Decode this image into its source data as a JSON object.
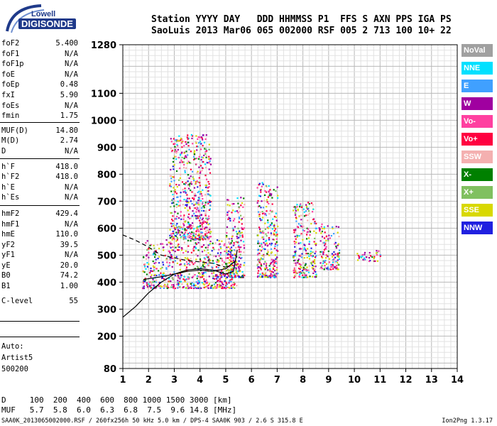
{
  "logo": {
    "line1": "Lowell",
    "line2": "DIGISONDE"
  },
  "header": {
    "line1": "Station YYYY DAY   DDD HHMMSS P1  FFS S AXN PPS IGA PS",
    "line2": "SaoLuis 2013 Mar06 065 002000 RSF 005 2 713 100 10+ 22"
  },
  "params": {
    "group1": [
      {
        "k": "foF2",
        "v": "5.400"
      },
      {
        "k": "foF1",
        "v": "N/A"
      },
      {
        "k": "foF1p",
        "v": "N/A"
      },
      {
        "k": "foE",
        "v": "N/A"
      },
      {
        "k": "foEp",
        "v": "0.48"
      },
      {
        "k": "fxI",
        "v": "5.90"
      },
      {
        "k": "foEs",
        "v": "N/A"
      },
      {
        "k": "fmin",
        "v": "1.75"
      }
    ],
    "group2": [
      {
        "k": "MUF(D)",
        "v": "14.80"
      },
      {
        "k": "M(D)",
        "v": "2.74"
      },
      {
        "k": "D",
        "v": "N/A"
      }
    ],
    "group3": [
      {
        "k": "h`F",
        "v": "418.0"
      },
      {
        "k": "h`F2",
        "v": "418.0"
      },
      {
        "k": "h`E",
        "v": "N/A"
      },
      {
        "k": "h`Es",
        "v": "N/A"
      }
    ],
    "group4": [
      {
        "k": "hmF2",
        "v": "429.4"
      },
      {
        "k": "hmF1",
        "v": "N/A"
      },
      {
        "k": "hmE",
        "v": "110.0"
      },
      {
        "k": "yF2",
        "v": "39.5"
      },
      {
        "k": "yF1",
        "v": "N/A"
      },
      {
        "k": "yE",
        "v": "20.0"
      },
      {
        "k": "B0",
        "v": "74.2"
      },
      {
        "k": "B1",
        "v": "1.00"
      }
    ],
    "group5": [
      {
        "k": "C-level",
        "v": "55"
      }
    ],
    "auto": [
      "Auto:",
      "Artist5",
      "500200"
    ]
  },
  "legend": [
    {
      "label": "NoVal",
      "color": "#a0a0a0"
    },
    {
      "label": "NNE",
      "color": "#00e0ff"
    },
    {
      "label": "E",
      "color": "#40a0ff"
    },
    {
      "label": "W",
      "color": "#a000a0"
    },
    {
      "label": "Vo-",
      "color": "#ff40a0"
    },
    {
      "label": "Vo+",
      "color": "#ff0040"
    },
    {
      "label": "SSW",
      "color": "#f4b0b0"
    },
    {
      "label": "X-",
      "color": "#008000"
    },
    {
      "label": "X+",
      "color": "#80c060"
    },
    {
      "label": "SSE",
      "color": "#d8d800"
    },
    {
      "label": "NNW",
      "color": "#2020e0"
    }
  ],
  "footer": {
    "line1": "D     100  200  400  600  800 1000 1500 3000 [km]",
    "line2": "MUF   5.7  5.8  6.0  6.3  6.8  7.5  9.6 14.8 [MHz]",
    "line3": "SAA0K_2013065002000.RSF / 260fx256h 50 kHz 5.0 km / DPS-4 SAA0K 903 / 2.6 S 315.8 E",
    "version": "Ion2Png 1.3.17"
  },
  "chart_data": {
    "type": "scatter",
    "xlim": [
      1,
      14
    ],
    "ylim": [
      80,
      1280
    ],
    "x_ticks": [
      1,
      2,
      3,
      4,
      5,
      6,
      7,
      8,
      9,
      10,
      11,
      12,
      13,
      14
    ],
    "y_ticks": [
      80,
      200,
      300,
      400,
      500,
      600,
      700,
      800,
      900,
      1000,
      1100,
      1280
    ],
    "grid": true,
    "legend_position": "right",
    "echo_bands": [
      {
        "x_from": 1.75,
        "x_to": 5.4,
        "h_from": 380,
        "h_to": 560
      },
      {
        "x_from": 2.8,
        "x_to": 4.4,
        "h_from": 560,
        "h_to": 950
      },
      {
        "x_from": 5.0,
        "x_to": 5.7,
        "h_from": 420,
        "h_to": 720
      },
      {
        "x_from": 6.2,
        "x_to": 7.0,
        "h_from": 420,
        "h_to": 780
      },
      {
        "x_from": 7.6,
        "x_to": 8.5,
        "h_from": 420,
        "h_to": 700
      },
      {
        "x_from": 8.6,
        "x_to": 9.4,
        "h_from": 450,
        "h_to": 620
      },
      {
        "x_from": 10.0,
        "x_to": 11.0,
        "h_from": 480,
        "h_to": 520
      }
    ],
    "profile_curve": [
      {
        "x": 1.0,
        "y": 270
      },
      {
        "x": 1.5,
        "y": 310
      },
      {
        "x": 2.0,
        "y": 360
      },
      {
        "x": 2.5,
        "y": 400
      },
      {
        "x": 3.0,
        "y": 430
      },
      {
        "x": 3.5,
        "y": 445
      },
      {
        "x": 4.0,
        "y": 450
      },
      {
        "x": 4.5,
        "y": 445
      },
      {
        "x": 5.0,
        "y": 430
      },
      {
        "x": 5.3,
        "y": 440
      },
      {
        "x": 5.45,
        "y": 520
      }
    ],
    "trace_dashed": [
      {
        "x": 1.0,
        "y": 575
      },
      {
        "x": 1.5,
        "y": 555
      },
      {
        "x": 2.0,
        "y": 530
      },
      {
        "x": 2.5,
        "y": 500
      },
      {
        "x": 3.0,
        "y": 490
      },
      {
        "x": 3.5,
        "y": 480
      },
      {
        "x": 4.0,
        "y": 475
      },
      {
        "x": 4.5,
        "y": 470
      },
      {
        "x": 5.0,
        "y": 455
      }
    ],
    "trace_solid": [
      {
        "x": 1.8,
        "y": 410
      },
      {
        "x": 2.5,
        "y": 420
      },
      {
        "x": 3.0,
        "y": 430
      },
      {
        "x": 3.5,
        "y": 440
      },
      {
        "x": 4.0,
        "y": 445
      },
      {
        "x": 4.5,
        "y": 440
      },
      {
        "x": 5.0,
        "y": 450
      },
      {
        "x": 5.4,
        "y": 480
      }
    ]
  }
}
